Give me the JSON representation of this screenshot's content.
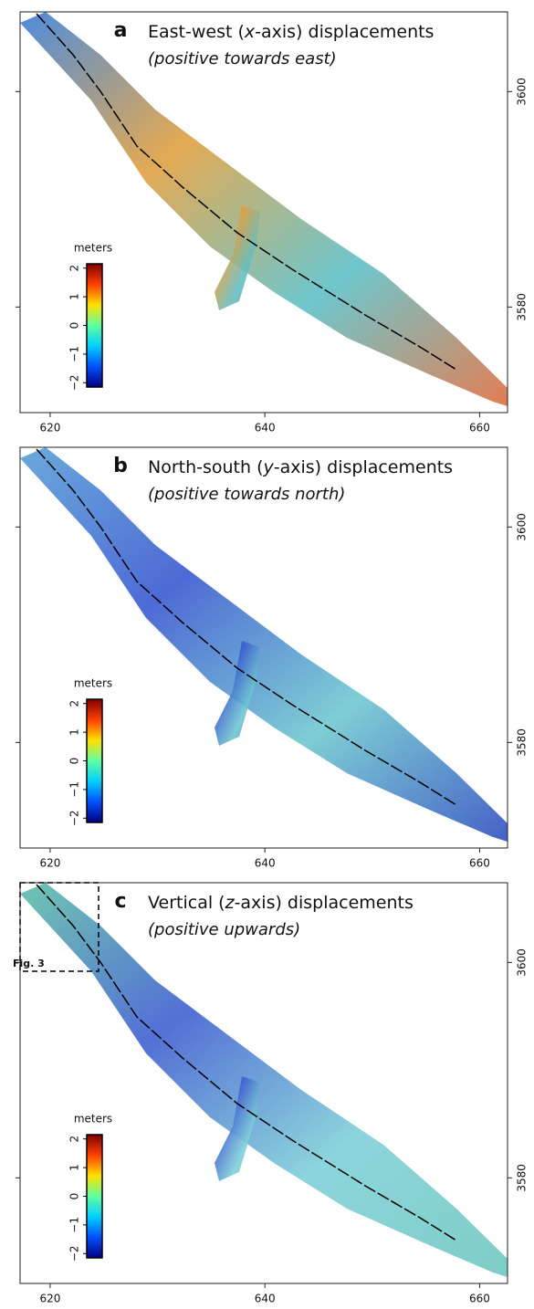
{
  "chart_data": [
    {
      "type": "map",
      "panel_label": "a",
      "title": [
        "East-west (",
        "x",
        "-axis) displacements"
      ],
      "subtitle": "(positive towards east)",
      "xlim": [
        617.2,
        662.6
      ],
      "ylim": [
        3570.2,
        3607.4
      ],
      "xticks": [
        620,
        640,
        660
      ],
      "yticks": [
        3580,
        3600
      ],
      "swath_colors": [
        "#3a7fd8",
        "#e0a040",
        "#5fc0c8",
        "#e07040"
      ],
      "colorbar": {
        "label": "meters",
        "lim": [
          -2.15,
          2.15
        ],
        "ticks": [
          {
            "value": -2,
            "label": "−2"
          },
          {
            "value": -1,
            "label": "−1"
          },
          0,
          1,
          2
        ],
        "colors": [
          "#00007f",
          "#0050ff",
          "#00d0ff",
          "#60ffa0",
          "#ffe000",
          "#ff4000",
          "#800000"
        ]
      }
    },
    {
      "type": "map",
      "panel_label": "b",
      "title": [
        "North-south (",
        "y",
        "-axis) displacements"
      ],
      "subtitle": "(positive towards north)",
      "xlim": [
        617.2,
        662.6
      ],
      "ylim": [
        3570.2,
        3607.4
      ],
      "xticks": [
        620,
        640,
        660
      ],
      "yticks": [
        3580,
        3600
      ],
      "swath_colors": [
        "#5aa0d8",
        "#3a5ad0",
        "#70c8d0",
        "#3050c0"
      ],
      "colorbar": {
        "label": "meters",
        "lim": [
          -2.15,
          2.15
        ],
        "ticks": [
          {
            "value": -2,
            "label": "−2"
          },
          {
            "value": -1,
            "label": "−1"
          },
          0,
          1,
          2
        ],
        "colors": [
          "#00007f",
          "#0050ff",
          "#00d0ff",
          "#60ffa0",
          "#ffe000",
          "#ff4000",
          "#800000"
        ]
      }
    },
    {
      "type": "map",
      "panel_label": "c",
      "title": [
        "Vertical (",
        "z",
        "-axis) displacements"
      ],
      "subtitle": "(positive upwards)",
      "annotation": "Fig. 3",
      "xlim": [
        617.2,
        662.6
      ],
      "ylim": [
        3570.2,
        3607.4
      ],
      "xticks": [
        620,
        640,
        660
      ],
      "yticks": [
        3580,
        3600
      ],
      "swath_colors": [
        "#60c0a8",
        "#4060d0",
        "#80d0d8",
        "#70c8c0"
      ],
      "colorbar": {
        "label": "meters",
        "lim": [
          -2.15,
          2.15
        ],
        "ticks": [
          {
            "value": -2,
            "label": "−2"
          },
          {
            "value": -1,
            "label": "−1"
          },
          0,
          1,
          2
        ],
        "colors": [
          "#00007f",
          "#0050ff",
          "#00d0ff",
          "#60ffa0",
          "#ffe000",
          "#ff4000",
          "#800000"
        ]
      }
    }
  ]
}
